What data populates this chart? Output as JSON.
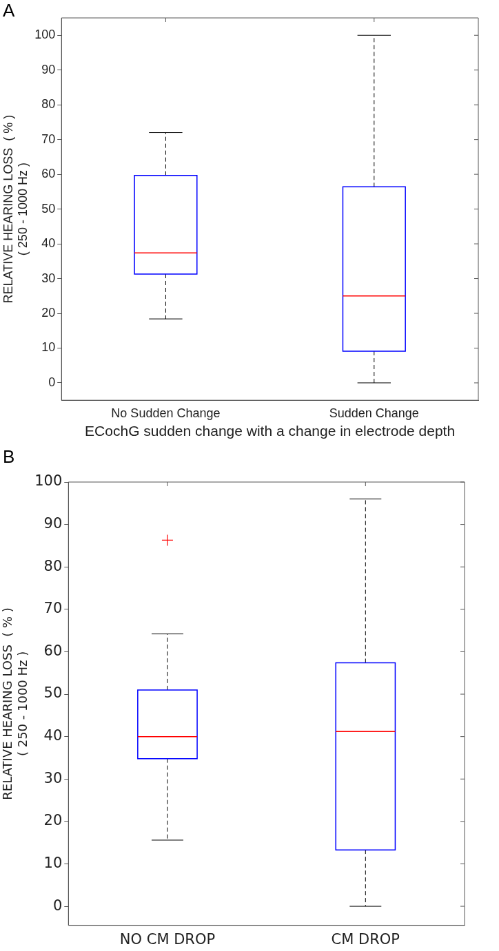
{
  "chart_data": [
    {
      "type": "box",
      "annotations": [
        "A"
      ],
      "xlabel": "ECochG sudden change with a change in electrode depth",
      "ylabel": "RELATIVE HEARING LOSS  ( % )\n( 250 - 1000 Hz )",
      "categories": [
        "No Sudden Change",
        "Sudden Change"
      ],
      "ylim": [
        -5,
        105
      ],
      "yticks": [
        0,
        10,
        20,
        30,
        40,
        50,
        60,
        70,
        80,
        90,
        100
      ],
      "grid": false,
      "legend": false,
      "series": [
        {
          "color": "#0000ff",
          "boxes": [
            {
              "low": 18.4,
              "q1": 31.3,
              "median": 37.4,
              "q3": 59.7,
              "high": 72
            },
            {
              "low": 0,
              "q1": 9.1,
              "median": 25,
              "q3": 56.4,
              "high": 100
            }
          ]
        }
      ]
    },
    {
      "type": "box",
      "annotations": [
        "B"
      ],
      "ylabel": "RELATIVE HEARING LOSS  ( % )\n( 250 - 1000 Hz )",
      "categories": [
        "NO CM DROP",
        "CM DROP"
      ],
      "ylim": [
        -4.5,
        100
      ],
      "yticks": [
        0,
        10,
        20,
        30,
        40,
        50,
        60,
        70,
        80,
        90,
        100
      ],
      "grid": false,
      "legend": false,
      "series": [
        {
          "color": "#0000ff",
          "boxes": [
            {
              "low": 15.6,
              "q1": 34.8,
              "median": 40,
              "q3": 51,
              "high": 64.2,
              "outliers": [
                86.3
              ]
            },
            {
              "low": 0,
              "q1": 13.3,
              "median": 41.2,
              "q3": 57.4,
              "high": 96
            }
          ]
        }
      ]
    }
  ]
}
